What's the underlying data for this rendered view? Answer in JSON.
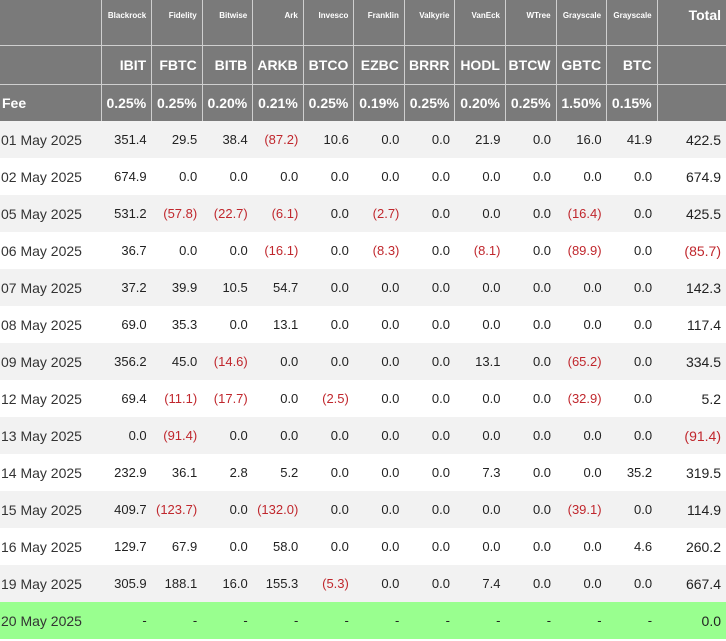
{
  "header": {
    "issuers": [
      "Blackrock",
      "Fidelity",
      "Bitwise",
      "Ark",
      "Invesco",
      "Franklin",
      "Valkyrie",
      "VanEck",
      "WTree",
      "Grayscale",
      "Grayscale"
    ],
    "total_label": "Total",
    "tickers": [
      "IBIT",
      "FBTC",
      "BITB",
      "ARKB",
      "BTCO",
      "EZBC",
      "BRRR",
      "HODL",
      "BTCW",
      "GBTC",
      "BTC"
    ],
    "fee_label": "Fee",
    "fees": [
      "0.25%",
      "0.25%",
      "0.20%",
      "0.21%",
      "0.25%",
      "0.19%",
      "0.25%",
      "0.20%",
      "0.25%",
      "1.50%",
      "0.15%"
    ]
  },
  "colors": {
    "header_bg": "#7a7a7a",
    "negative": "#c0272d",
    "highlight_row": "#99ff8f",
    "stripe": "#f2f2f2"
  },
  "rows": [
    {
      "date": "01 May 2025",
      "values": [
        "351.4",
        "29.5",
        "38.4",
        "(87.2)",
        "10.6",
        "0.0",
        "0.0",
        "21.9",
        "0.0",
        "16.0",
        "41.9"
      ],
      "total": "422.5"
    },
    {
      "date": "02 May 2025",
      "values": [
        "674.9",
        "0.0",
        "0.0",
        "0.0",
        "0.0",
        "0.0",
        "0.0",
        "0.0",
        "0.0",
        "0.0",
        "0.0"
      ],
      "total": "674.9"
    },
    {
      "date": "05 May 2025",
      "values": [
        "531.2",
        "(57.8)",
        "(22.7)",
        "(6.1)",
        "0.0",
        "(2.7)",
        "0.0",
        "0.0",
        "0.0",
        "(16.4)",
        "0.0"
      ],
      "total": "425.5"
    },
    {
      "date": "06 May 2025",
      "values": [
        "36.7",
        "0.0",
        "0.0",
        "(16.1)",
        "0.0",
        "(8.3)",
        "0.0",
        "(8.1)",
        "0.0",
        "(89.9)",
        "0.0"
      ],
      "total": "(85.7)"
    },
    {
      "date": "07 May 2025",
      "values": [
        "37.2",
        "39.9",
        "10.5",
        "54.7",
        "0.0",
        "0.0",
        "0.0",
        "0.0",
        "0.0",
        "0.0",
        "0.0"
      ],
      "total": "142.3"
    },
    {
      "date": "08 May 2025",
      "values": [
        "69.0",
        "35.3",
        "0.0",
        "13.1",
        "0.0",
        "0.0",
        "0.0",
        "0.0",
        "0.0",
        "0.0",
        "0.0"
      ],
      "total": "117.4"
    },
    {
      "date": "09 May 2025",
      "values": [
        "356.2",
        "45.0",
        "(14.6)",
        "0.0",
        "0.0",
        "0.0",
        "0.0",
        "13.1",
        "0.0",
        "(65.2)",
        "0.0"
      ],
      "total": "334.5"
    },
    {
      "date": "12 May 2025",
      "values": [
        "69.4",
        "(11.1)",
        "(17.7)",
        "0.0",
        "(2.5)",
        "0.0",
        "0.0",
        "0.0",
        "0.0",
        "(32.9)",
        "0.0"
      ],
      "total": "5.2"
    },
    {
      "date": "13 May 2025",
      "values": [
        "0.0",
        "(91.4)",
        "0.0",
        "0.0",
        "0.0",
        "0.0",
        "0.0",
        "0.0",
        "0.0",
        "0.0",
        "0.0"
      ],
      "total": "(91.4)"
    },
    {
      "date": "14 May 2025",
      "values": [
        "232.9",
        "36.1",
        "2.8",
        "5.2",
        "0.0",
        "0.0",
        "0.0",
        "7.3",
        "0.0",
        "0.0",
        "35.2"
      ],
      "total": "319.5"
    },
    {
      "date": "15 May 2025",
      "values": [
        "409.7",
        "(123.7)",
        "0.0",
        "(132.0)",
        "0.0",
        "0.0",
        "0.0",
        "0.0",
        "0.0",
        "(39.1)",
        "0.0"
      ],
      "total": "114.9"
    },
    {
      "date": "16 May 2025",
      "values": [
        "129.7",
        "67.9",
        "0.0",
        "58.0",
        "0.0",
        "0.0",
        "0.0",
        "0.0",
        "0.0",
        "0.0",
        "4.6"
      ],
      "total": "260.2"
    },
    {
      "date": "19 May 2025",
      "values": [
        "305.9",
        "188.1",
        "16.0",
        "155.3",
        "(5.3)",
        "0.0",
        "0.0",
        "7.4",
        "0.0",
        "0.0",
        "0.0"
      ],
      "total": "667.4"
    },
    {
      "date": "20 May 2025",
      "values": [
        "-",
        "-",
        "-",
        "-",
        "-",
        "-",
        "-",
        "-",
        "-",
        "-",
        "-"
      ],
      "total": "0.0"
    }
  ]
}
